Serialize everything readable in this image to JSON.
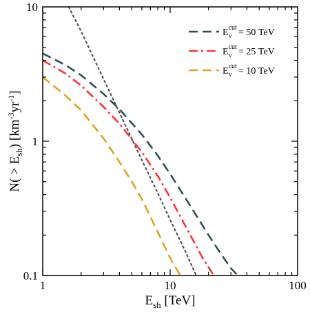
{
  "chart_data": {
    "type": "line",
    "xlabel": "E",
    "xlabel_sub": "sh",
    "xlabel_unit": " [TeV]",
    "ylabel_parts": [
      "N( > E",
      "sh",
      ") [km",
      "-3",
      "yr",
      "-1",
      "]"
    ],
    "x_scale": "log",
    "y_scale": "log",
    "xlim": [
      1,
      100
    ],
    "ylim": [
      0.1,
      10
    ],
    "x_ticks": [
      {
        "value": 1,
        "label": "1"
      },
      {
        "value": 10,
        "label": "10"
      },
      {
        "value": 100,
        "label": "100"
      }
    ],
    "y_ticks": [
      {
        "value": 0.1,
        "label": "0.1"
      },
      {
        "value": 1,
        "label": "1"
      },
      {
        "value": 10,
        "label": "10"
      }
    ],
    "grid": false,
    "legend_position": "top-right",
    "series": [
      {
        "name": "E_ν^cut = 50 TeV",
        "legend_main": "E",
        "legend_sub": "ν",
        "legend_sup": "cut",
        "legend_rest": "= 50 TeV",
        "color": "#2f4f4f",
        "style": "dashed",
        "x": [
          1,
          1.5,
          2,
          3,
          4,
          6,
          8,
          10,
          15,
          20,
          25,
          30,
          34
        ],
        "y": [
          4.5,
          3.7,
          3.1,
          2.25,
          1.73,
          1.12,
          0.78,
          0.57,
          0.31,
          0.2,
          0.145,
          0.113,
          0.1
        ]
      },
      {
        "name": "E_ν^cut = 25 TeV",
        "legend_main": "E",
        "legend_sub": "ν",
        "legend_sup": "cut",
        "legend_rest": "= 25 TeV",
        "color": "#ff3333",
        "style": "dashdot",
        "x": [
          1,
          1.5,
          2,
          3,
          4,
          6,
          8,
          10,
          14,
          18,
          22
        ],
        "y": [
          4.0,
          3.2,
          2.6,
          1.8,
          1.35,
          0.83,
          0.55,
          0.38,
          0.21,
          0.135,
          0.1
        ]
      },
      {
        "name": "E_ν^cut = 10 TeV",
        "legend_main": "E",
        "legend_sub": "ν",
        "legend_sup": "cut",
        "legend_rest": "= 10 TeV",
        "color": "#daa520",
        "style": "dashed",
        "x": [
          1,
          1.5,
          2,
          3,
          4,
          5,
          6,
          8,
          10,
          12
        ],
        "y": [
          3.0,
          2.2,
          1.7,
          1.05,
          0.7,
          0.5,
          0.37,
          0.21,
          0.135,
          0.1
        ]
      },
      {
        "name": "",
        "color": "#555555",
        "style": "dotted",
        "x": [
          1.6,
          2,
          3,
          4,
          6,
          8,
          10,
          13,
          16
        ],
        "y": [
          10,
          6.6,
          2.9,
          1.63,
          0.72,
          0.41,
          0.26,
          0.155,
          0.1
        ]
      }
    ]
  }
}
